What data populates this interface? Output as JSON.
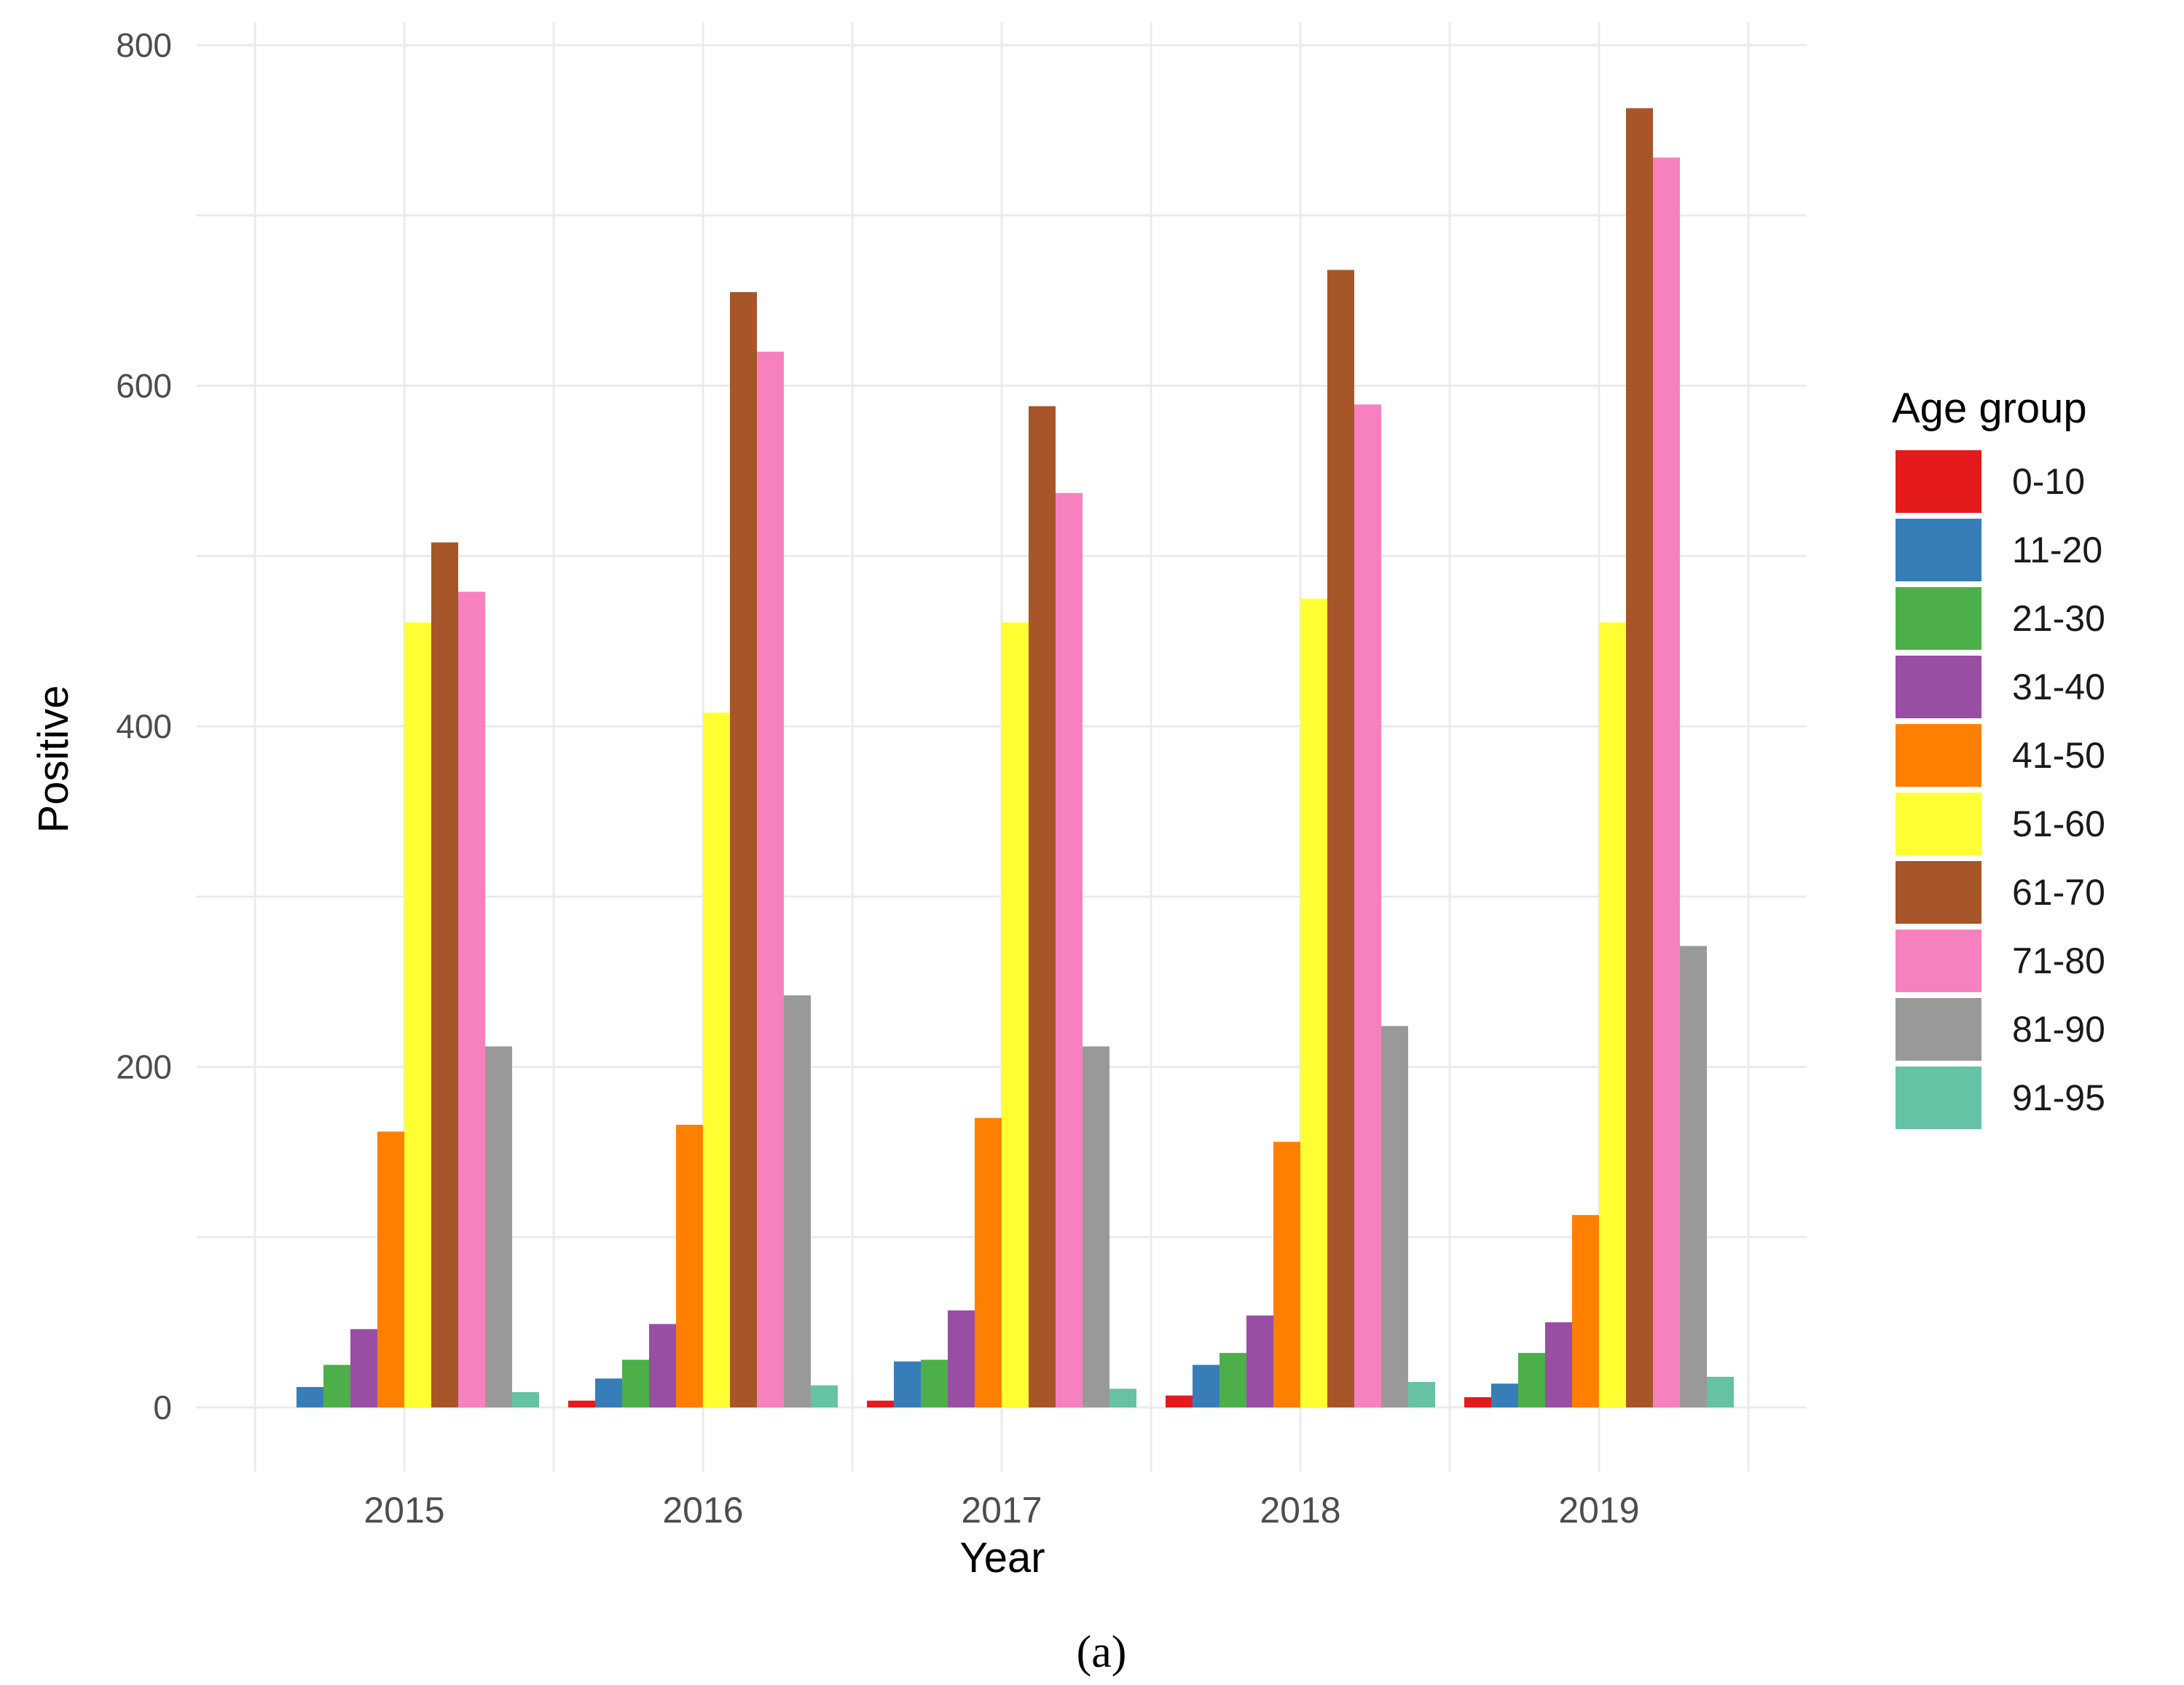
{
  "chart_data": {
    "type": "bar",
    "title": "",
    "xlabel": "Year",
    "ylabel": "Positive",
    "ylim": [
      -40,
      800
    ],
    "yticks": [
      0,
      200,
      400,
      600,
      800
    ],
    "categories": [
      "2015",
      "2016",
      "2017",
      "2018",
      "2019"
    ],
    "legend": {
      "title": "Age group",
      "position": "right"
    },
    "grid": true,
    "series": [
      {
        "name": "0-10",
        "color": "#E41A1C",
        "values": [
          0,
          4,
          4,
          7,
          6
        ]
      },
      {
        "name": "11-20",
        "color": "#377EB8",
        "values": [
          12,
          17,
          27,
          25,
          14
        ]
      },
      {
        "name": "21-30",
        "color": "#4DAF4A",
        "values": [
          25,
          28,
          28,
          32,
          32
        ]
      },
      {
        "name": "31-40",
        "color": "#984EA3",
        "values": [
          46,
          49,
          57,
          54,
          50
        ]
      },
      {
        "name": "41-50",
        "color": "#FF7F00",
        "values": [
          162,
          166,
          170,
          156,
          113
        ]
      },
      {
        "name": "51-60",
        "color": "#FFFF33",
        "values": [
          461,
          408,
          461,
          475,
          461
        ]
      },
      {
        "name": "61-70",
        "color": "#A65628",
        "values": [
          508,
          655,
          588,
          668,
          763
        ]
      },
      {
        "name": "71-80",
        "color": "#F781BF",
        "values": [
          479,
          620,
          537,
          589,
          734
        ]
      },
      {
        "name": "81-90",
        "color": "#999999",
        "values": [
          212,
          242,
          212,
          224,
          271
        ]
      },
      {
        "name": "91-95",
        "color": "#66C2A5",
        "values": [
          9,
          13,
          11,
          15,
          18
        ]
      }
    ]
  },
  "caption": "(a)"
}
